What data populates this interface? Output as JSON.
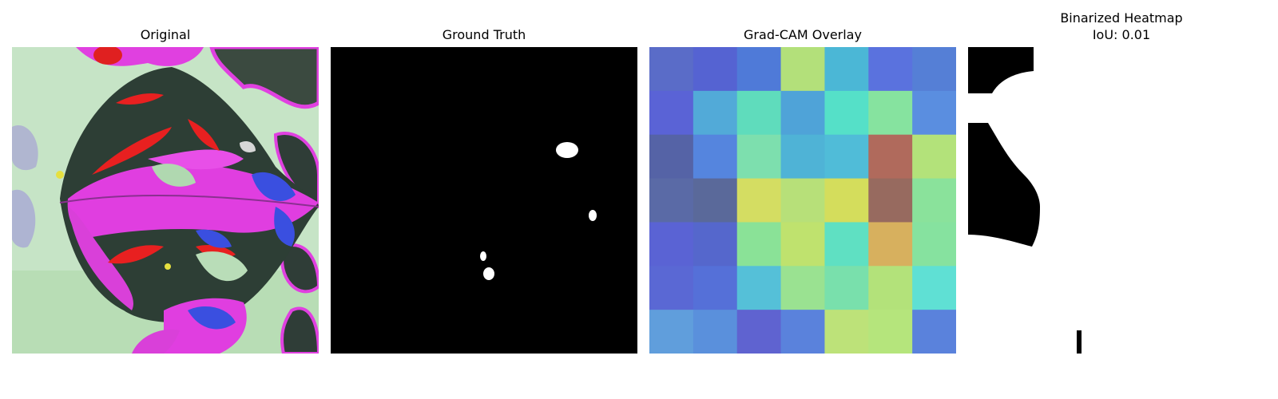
{
  "panels": {
    "original": {
      "title": "Original"
    },
    "ground_truth": {
      "title": "Ground Truth"
    },
    "gradcam": {
      "title": "Grad-CAM Overlay",
      "grid": [
        [
          "#5a6cc8",
          "#5563d2",
          "#4f7ad8",
          "#b3e07a",
          "#4bb7d6",
          "#5a72de",
          "#557fd6"
        ],
        [
          "#5a63d6",
          "#52aad8",
          "#5fdcbc",
          "#4fa3d8",
          "#55e0c8",
          "#86e39f",
          "#5a8ee0"
        ],
        [
          "#5563a6",
          "#5585de",
          "#7ddfae",
          "#4fb3d6",
          "#50bcd8",
          "#b06a5c",
          "#b3e27a"
        ],
        [
          "#5a6aa6",
          "#5a699a",
          "#d4dd62",
          "#b7e079",
          "#d4dd5c",
          "#976a5f",
          "#8ae29b"
        ],
        [
          "#5a63d4",
          "#5567cc",
          "#8ae297",
          "#bfe26e",
          "#5fe0c2",
          "#d7b05e",
          "#86e29f"
        ],
        [
          "#5a68d4",
          "#5570d8",
          "#55c0d8",
          "#9ae291",
          "#79e0ac",
          "#b3e27a",
          "#5fe0d4"
        ],
        [
          "#609edc",
          "#5a90dc",
          "#5f63d0",
          "#5a82dc",
          "#bde279",
          "#b5e57c",
          "#5a82dc"
        ]
      ]
    },
    "binarized": {
      "title": "Binarized Heatmap",
      "iou": "IoU: 0.01"
    }
  }
}
